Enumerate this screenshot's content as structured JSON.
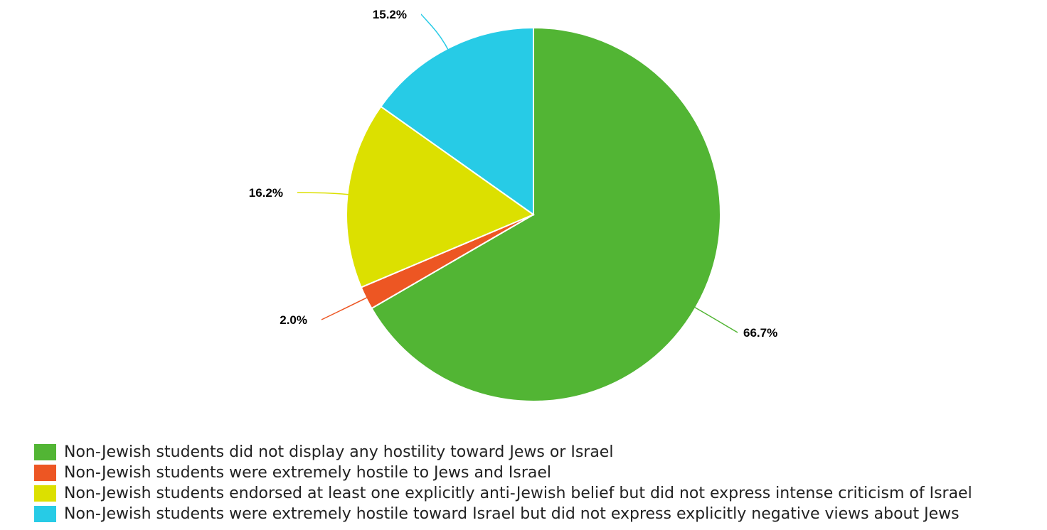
{
  "chart_data": {
    "type": "pie",
    "title": "",
    "start_angle_deg": 0,
    "direction": "clockwise",
    "legend_position": "bottom-left",
    "slices": [
      {
        "name": "Non-Jewish students did not display any hostility toward Jews or Israel",
        "value": 66.7,
        "label": "66.7%",
        "color": "#52b534"
      },
      {
        "name": "Non-Jewish students were extremely hostile to Jews and Israel",
        "value": 2.0,
        "label": "2.0%",
        "color": "#ed5623"
      },
      {
        "name": "Non-Jewish students endorsed at least one explicitly anti-Jewish belief but did not express intense criticism of Israel",
        "value": 16.2,
        "label": "16.2%",
        "color": "#dce000"
      },
      {
        "name": "Non-Jewish students were extremely hostile toward Israel but did not express explicitly negative views about Jews",
        "value": 15.2,
        "label": "15.2%",
        "color": "#27cbe6"
      }
    ]
  }
}
